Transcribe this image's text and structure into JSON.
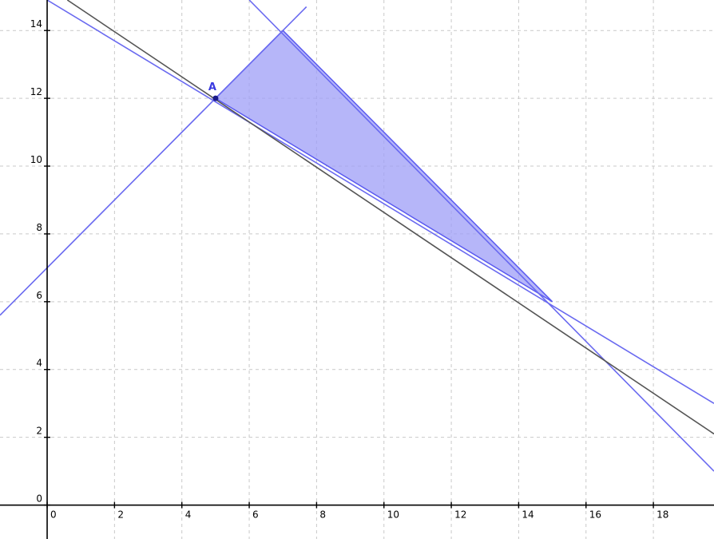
{
  "chart_data": {
    "type": "line",
    "title": "",
    "xlabel": "",
    "ylabel": "",
    "xlim": [
      -1.4,
      19.8
    ],
    "ylim": [
      -1.0,
      14.9
    ],
    "grid": true,
    "x_ticks": [
      0,
      2,
      4,
      6,
      8,
      10,
      12,
      14,
      16,
      18
    ],
    "y_ticks": [
      0,
      2,
      4,
      6,
      8,
      10,
      12,
      14
    ],
    "series": [
      {
        "color": "#6a6af0",
        "points": [
          [
            -1.4,
            5.6
          ],
          [
            7.7,
            14.7
          ]
        ]
      },
      {
        "color": "#6a6af0",
        "points": [
          [
            0,
            14.9
          ],
          [
            19.8,
            3.0
          ]
        ]
      },
      {
        "color": "#6a6af0",
        "points": [
          [
            6.0,
            14.9
          ],
          [
            19.8,
            1.0
          ]
        ]
      },
      {
        "color": "#555555",
        "points": [
          [
            0.6,
            14.9
          ],
          [
            19.8,
            2.1
          ]
        ]
      }
    ],
    "region": {
      "color": "#9d9df7",
      "vertices": [
        [
          5,
          12
        ],
        [
          7,
          14
        ],
        [
          15,
          6
        ]
      ]
    },
    "points": [
      {
        "label": "A",
        "x": 5,
        "y": 12
      }
    ]
  }
}
